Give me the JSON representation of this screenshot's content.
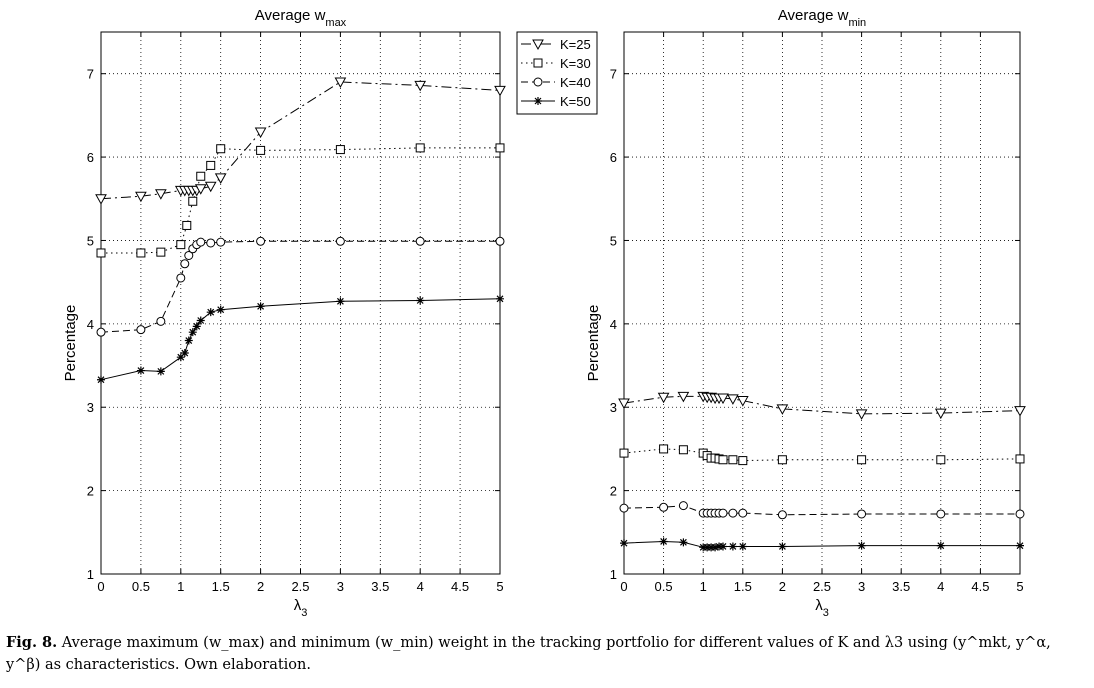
{
  "chart_data": [
    {
      "type": "line",
      "title": "Average w",
      "title_sub": "max",
      "xlabel": "λ",
      "xlabel_sub": "3",
      "ylabel": "Percentage",
      "xlim": [
        0,
        5
      ],
      "ylim": [
        1,
        7.5
      ],
      "xticks": [
        "0",
        "0.5",
        "1",
        "1.5",
        "2",
        "2.5",
        "3",
        "3.5",
        "4",
        "4.5",
        "5"
      ],
      "yticks": [
        "1",
        "2",
        "3",
        "4",
        "5",
        "6",
        "7"
      ],
      "grid": true,
      "legend": "outside top-right",
      "series": [
        {
          "name": "K=25",
          "marker": "triangle-down",
          "linestyle": "dash-dot",
          "x": [
            0,
            0.5,
            0.75,
            1,
            1.05,
            1.1,
            1.15,
            1.2,
            1.25,
            1.375,
            1.5,
            2,
            3,
            4,
            5
          ],
          "y": [
            5.5,
            5.53,
            5.56,
            5.6,
            5.6,
            5.6,
            5.6,
            5.6,
            5.62,
            5.65,
            5.75,
            6.3,
            6.9,
            6.86,
            6.8
          ]
        },
        {
          "name": "K=30",
          "marker": "square",
          "linestyle": "dotted",
          "x": [
            0,
            0.5,
            0.75,
            1,
            1.075,
            1.15,
            1.25,
            1.375,
            1.5,
            2,
            3,
            4,
            5
          ],
          "y": [
            4.85,
            4.85,
            4.86,
            4.95,
            5.18,
            5.47,
            5.77,
            5.9,
            6.1,
            6.08,
            6.09,
            6.11,
            6.11
          ]
        },
        {
          "name": "K=40",
          "marker": "circle",
          "linestyle": "dashed",
          "x": [
            0,
            0.5,
            0.75,
            1,
            1.05,
            1.1,
            1.15,
            1.2,
            1.25,
            1.375,
            1.5,
            2,
            3,
            4,
            5
          ],
          "y": [
            3.9,
            3.93,
            4.03,
            4.55,
            4.72,
            4.82,
            4.9,
            4.95,
            4.98,
            4.97,
            4.98,
            4.99,
            4.99,
            4.99,
            4.99
          ]
        },
        {
          "name": "K=50",
          "marker": "star",
          "linestyle": "solid",
          "x": [
            0,
            0.5,
            0.75,
            1,
            1.05,
            1.1,
            1.15,
            1.2,
            1.25,
            1.375,
            1.5,
            2,
            3,
            4,
            5
          ],
          "y": [
            3.33,
            3.44,
            3.43,
            3.6,
            3.65,
            3.8,
            3.9,
            3.97,
            4.04,
            4.14,
            4.17,
            4.21,
            4.27,
            4.28,
            4.3
          ]
        }
      ]
    },
    {
      "type": "line",
      "title": "Average w",
      "title_sub": "min",
      "xlabel": "λ",
      "xlabel_sub": "3",
      "ylabel": "Percentage",
      "xlim": [
        0,
        5
      ],
      "ylim": [
        1,
        7.5
      ],
      "xticks": [
        "0",
        "0.5",
        "1",
        "1.5",
        "2",
        "2.5",
        "3",
        "3.5",
        "4",
        "4.5",
        "5"
      ],
      "yticks": [
        "1",
        "2",
        "3",
        "4",
        "5",
        "6",
        "7"
      ],
      "grid": true,
      "series": [
        {
          "name": "K=25",
          "marker": "triangle-down",
          "linestyle": "dash-dot",
          "x": [
            0,
            0.5,
            0.75,
            1,
            1.05,
            1.1,
            1.15,
            1.2,
            1.25,
            1.375,
            1.5,
            2,
            3,
            4,
            5
          ],
          "y": [
            3.05,
            3.12,
            3.13,
            3.13,
            3.12,
            3.12,
            3.11,
            3.11,
            3.11,
            3.1,
            3.08,
            2.98,
            2.92,
            2.93,
            2.96
          ]
        },
        {
          "name": "K=30",
          "marker": "square",
          "linestyle": "dotted",
          "x": [
            0,
            0.5,
            0.75,
            1,
            1.05,
            1.1,
            1.15,
            1.2,
            1.25,
            1.375,
            1.5,
            2,
            3,
            4,
            5
          ],
          "y": [
            2.45,
            2.5,
            2.49,
            2.45,
            2.42,
            2.39,
            2.39,
            2.38,
            2.37,
            2.37,
            2.36,
            2.37,
            2.37,
            2.37,
            2.38
          ]
        },
        {
          "name": "K=40",
          "marker": "circle",
          "linestyle": "dashed",
          "x": [
            0,
            0.5,
            0.75,
            1,
            1.05,
            1.1,
            1.15,
            1.2,
            1.25,
            1.375,
            1.5,
            2,
            3,
            4,
            5
          ],
          "y": [
            1.79,
            1.8,
            1.82,
            1.73,
            1.73,
            1.73,
            1.73,
            1.73,
            1.73,
            1.73,
            1.73,
            1.71,
            1.72,
            1.72,
            1.72
          ]
        },
        {
          "name": "K=50",
          "marker": "star",
          "linestyle": "solid",
          "x": [
            0,
            0.5,
            0.75,
            1,
            1.05,
            1.1,
            1.15,
            1.2,
            1.25,
            1.375,
            1.5,
            2,
            3,
            4,
            5
          ],
          "y": [
            1.37,
            1.39,
            1.38,
            1.32,
            1.32,
            1.32,
            1.32,
            1.33,
            1.33,
            1.33,
            1.33,
            1.33,
            1.34,
            1.34,
            1.34
          ]
        }
      ]
    }
  ],
  "caption": {
    "label": "Fig. 8.",
    "text": "Average maximum (w_max) and minimum (w_min) weight in the tracking portfolio for different values of K and λ3 using (y^mkt, y^α, y^β) as characteristics. Own elaboration."
  }
}
